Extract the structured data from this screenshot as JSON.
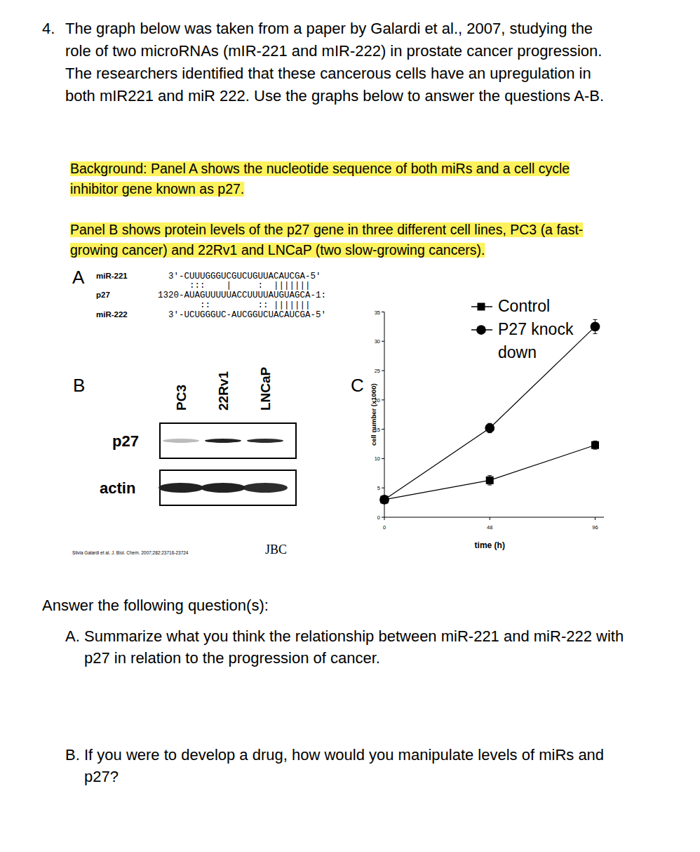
{
  "question": {
    "number": "4.",
    "lines": [
      "The graph below was taken from a paper by Galardi et al., 2007, studying the",
      "role of two microRNAs (mIR-221 and mIR-222) in prostate cancer progression.",
      "The researchers identified that these cancerous cells have an upregulation in",
      "both mIR221 and miR 222. Use the graphs below to answer the questions A-B."
    ]
  },
  "background": {
    "lines": [
      "Background: Panel A shows the nucleotide sequence of both miRs and a cell cycle",
      "inhibitor gene known as p27."
    ]
  },
  "panel_b_note": {
    "lines": [
      "Panel B shows protein levels of the p27 gene in three different cell lines, PC3 (a fast-",
      "growing cancer) and 22Rv1 and LNCaP (two slow-growing cancers)."
    ]
  },
  "figure": {
    "panel_a": {
      "label": "A",
      "names": [
        "miR-221",
        "p27",
        "miR-222"
      ],
      "sequences": [
        "3'-CUUUGGGUCGUCUGUUACAUCGA-5'",
        "1320-AUAGUUUUUACCUUUUAUGUAGCA-1:",
        "3'-UCUGGGUC-AUCGGUCUACAUCGA-5'"
      ],
      "pairings": [
        "    :::    |     :  |||||||",
        "      ::         :: |||||||"
      ]
    },
    "panel_b": {
      "label": "B",
      "cell_lines": [
        "PC3",
        "22Rv1",
        "LNCaP"
      ],
      "rows": [
        {
          "label": "p27",
          "intensity": [
            0.3,
            1,
            0.95
          ]
        },
        {
          "label": "actin",
          "intensity": [
            1,
            1,
            0.95
          ]
        }
      ]
    },
    "citation": "Silvia Galardi et al. J. Biol. Chem. 2007;282:23716-23724",
    "journal": "JBC",
    "panel_c_label": "C"
  },
  "chart_data": {
    "type": "line",
    "x_label": "time (h)",
    "y_label": "cell number (x1000)",
    "x": [
      0,
      48,
      96
    ],
    "xlim": [
      0,
      100
    ],
    "xticks": [
      0,
      48,
      96
    ],
    "ylim": [
      0,
      35
    ],
    "yticks": [
      0,
      5,
      10,
      15,
      20,
      25,
      30,
      35
    ],
    "legend": "top",
    "series": [
      {
        "name": "Control",
        "color": "#000000",
        "marker": "square",
        "values": [
          3,
          6.3,
          12.3
        ],
        "errors": [
          0.3,
          0.8,
          0.7
        ]
      },
      {
        "name": "P27 knock down",
        "color": "#000000",
        "marker": "circle",
        "values": [
          3,
          15.2,
          32.5
        ],
        "errors": [
          0.3,
          0.8,
          1.2
        ]
      }
    ]
  },
  "questions": {
    "heading": "Answer the following question(s):",
    "items": [
      {
        "label": "A.",
        "lines": [
          "Summarize what you think the relationship between miR-221 and miR-222 with",
          "p27 in relation to the progression of cancer."
        ]
      },
      {
        "label": "B.",
        "lines": [
          "If you were to develop a drug, how would you manipulate levels of miRs and",
          "p27?"
        ]
      }
    ]
  }
}
